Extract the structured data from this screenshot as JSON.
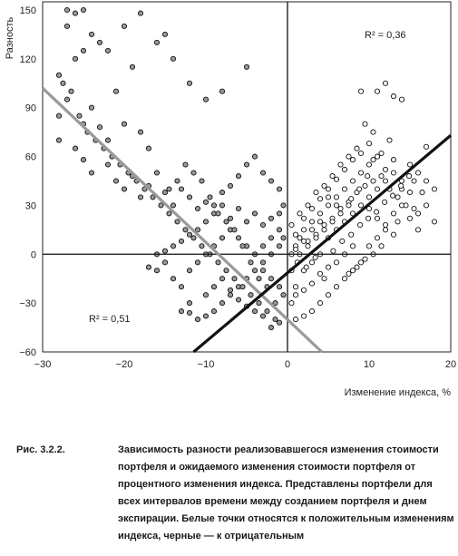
{
  "chart_data": {
    "type": "scatter",
    "ylabel": "Разность",
    "xlabel": "Изменение индекса, %",
    "xlim": [
      -30,
      20
    ],
    "ylim": [
      -60,
      155
    ],
    "xticks": [
      "−30",
      "−20",
      "−10",
      "0",
      "10",
      "20"
    ],
    "xtick_values": [
      -30,
      -20,
      -10,
      0,
      10,
      20
    ],
    "yticks": [
      "150",
      "120",
      "90",
      "60",
      "30",
      "0",
      "−30",
      "−60"
    ],
    "ytick_values": [
      150,
      120,
      90,
      60,
      30,
      0,
      -30,
      -60
    ],
    "r2_positive": "R² = 0,36",
    "r2_negative": "R² = 0,51",
    "series": [
      {
        "name": "Белые точки",
        "fill": "#ffffff",
        "points": [
          [
            1,
            5
          ],
          [
            1.5,
            10
          ],
          [
            2,
            15
          ],
          [
            2.5,
            8
          ],
          [
            3,
            20
          ],
          [
            3.5,
            12
          ],
          [
            4,
            25
          ],
          [
            4.5,
            18
          ],
          [
            5,
            30
          ],
          [
            5.5,
            22
          ],
          [
            6,
            35
          ],
          [
            6.5,
            28
          ],
          [
            7,
            40
          ],
          [
            7.5,
            32
          ],
          [
            8,
            45
          ],
          [
            8.5,
            38
          ],
          [
            9,
            50
          ],
          [
            9.5,
            42
          ],
          [
            10,
            55
          ],
          [
            10.5,
            45
          ],
          [
            11,
            60
          ],
          [
            11.5,
            48
          ],
          [
            12,
            52
          ],
          [
            12.5,
            40
          ],
          [
            13,
            58
          ],
          [
            13.5,
            35
          ],
          [
            14,
            45
          ],
          [
            14.5,
            30
          ],
          [
            15,
            38
          ],
          [
            16,
            25
          ],
          [
            17,
            66
          ],
          [
            18,
            20
          ],
          [
            15.5,
            28
          ],
          [
            13.5,
            20
          ],
          [
            12,
            15
          ],
          [
            11,
            10
          ],
          [
            10,
            5
          ],
          [
            9,
            -5
          ],
          [
            8,
            -10
          ],
          [
            7,
            -15
          ],
          [
            6,
            -20
          ],
          [
            5,
            -25
          ],
          [
            4,
            -30
          ],
          [
            3,
            -35
          ],
          [
            2,
            -38
          ],
          [
            1,
            -40
          ],
          [
            0.5,
            -30
          ],
          [
            1,
            -20
          ],
          [
            2,
            -10
          ],
          [
            3,
            -5
          ],
          [
            4,
            0
          ],
          [
            5,
            10
          ],
          [
            6,
            15
          ],
          [
            7,
            20
          ],
          [
            8,
            25
          ],
          [
            9,
            30
          ],
          [
            10,
            35
          ],
          [
            11,
            40
          ],
          [
            12,
            45
          ],
          [
            13,
            50
          ],
          [
            9,
            100
          ],
          [
            11,
            100
          ],
          [
            12,
            105
          ],
          [
            13,
            97
          ],
          [
            14,
            95
          ],
          [
            10,
            68
          ],
          [
            10.5,
            75
          ],
          [
            9.5,
            80
          ],
          [
            8.5,
            65
          ],
          [
            7.5,
            60
          ],
          [
            6.5,
            55
          ],
          [
            5.5,
            48
          ],
          [
            4.5,
            42
          ],
          [
            3.5,
            38
          ],
          [
            2.5,
            30
          ],
          [
            1.5,
            25
          ],
          [
            0.5,
            18
          ],
          [
            1,
            12
          ],
          [
            2,
            22
          ],
          [
            3,
            28
          ],
          [
            4,
            34
          ],
          [
            5,
            40
          ],
          [
            6,
            46
          ],
          [
            7,
            52
          ],
          [
            8,
            58
          ],
          [
            9,
            62
          ],
          [
            10,
            28
          ],
          [
            11,
            22
          ],
          [
            12,
            18
          ],
          [
            13,
            25
          ],
          [
            14,
            30
          ],
          [
            15,
            22
          ],
          [
            16,
            15
          ],
          [
            17,
            30
          ],
          [
            8,
            5
          ],
          [
            7,
            0
          ],
          [
            6,
            -5
          ],
          [
            5,
            -8
          ],
          [
            4,
            -12
          ],
          [
            3,
            -18
          ],
          [
            2,
            -22
          ],
          [
            1,
            -25
          ],
          [
            0.5,
            -10
          ],
          [
            1.5,
            0
          ],
          [
            2.5,
            5
          ],
          [
            3.5,
            10
          ],
          [
            4.5,
            15
          ],
          [
            5.5,
            20
          ],
          [
            6.5,
            25
          ],
          [
            7.5,
            30
          ],
          [
            14,
            40
          ],
          [
            15.5,
            45
          ],
          [
            16.5,
            38
          ],
          [
            13,
            12
          ],
          [
            11.5,
            5
          ],
          [
            10.5,
            0
          ],
          [
            9.5,
            -3
          ],
          [
            8.5,
            -8
          ],
          [
            7.5,
            -12
          ],
          [
            6,
            30
          ],
          [
            5,
            35
          ],
          [
            4,
            20
          ],
          [
            3,
            15
          ],
          [
            2,
            8
          ],
          [
            1,
            3
          ],
          [
            0.5,
            0
          ],
          [
            1.2,
            -5
          ],
          [
            2.3,
            -8
          ],
          [
            3.4,
            -2
          ],
          [
            4.5,
            -15
          ],
          [
            5.6,
            2
          ],
          [
            6.7,
            8
          ],
          [
            7.8,
            12
          ],
          [
            8.9,
            18
          ],
          [
            9.9,
            22
          ],
          [
            10.9,
            26
          ],
          [
            11.9,
            32
          ],
          [
            12.9,
            36
          ],
          [
            13.9,
            42
          ],
          [
            14.9,
            48
          ],
          [
            15,
            55
          ],
          [
            16,
            50
          ],
          [
            17,
            45
          ],
          [
            18,
            40
          ],
          [
            12.5,
            70
          ],
          [
            11.5,
            62
          ],
          [
            10.5,
            58
          ],
          [
            9.8,
            48
          ],
          [
            8.8,
            40
          ],
          [
            7.8,
            34
          ]
        ]
      },
      {
        "name": "Черные точки",
        "fill": "#9a9a9a",
        "points": [
          [
            -27,
            150
          ],
          [
            -26,
            148
          ],
          [
            -25,
            150
          ],
          [
            -27,
            140
          ],
          [
            -24,
            135
          ],
          [
            -25,
            125
          ],
          [
            -26,
            120
          ],
          [
            -28,
            110
          ],
          [
            -23,
            130
          ],
          [
            -22,
            125
          ],
          [
            -20,
            140
          ],
          [
            -18,
            148
          ],
          [
            -16,
            130
          ],
          [
            -15,
            135
          ],
          [
            -14,
            120
          ],
          [
            -12,
            105
          ],
          [
            -10,
            95
          ],
          [
            -8,
            100
          ],
          [
            -5,
            115
          ],
          [
            -19,
            115
          ],
          [
            -21,
            100
          ],
          [
            -24,
            90
          ],
          [
            -27,
            95
          ],
          [
            -28,
            85
          ],
          [
            -25,
            80
          ],
          [
            -23,
            78
          ],
          [
            -22,
            70
          ],
          [
            -20,
            80
          ],
          [
            -18,
            75
          ],
          [
            -17,
            65
          ],
          [
            -28,
            70
          ],
          [
            -26,
            65
          ],
          [
            -25,
            58
          ],
          [
            -24,
            50
          ],
          [
            -22,
            55
          ],
          [
            -21,
            45
          ],
          [
            -20,
            40
          ],
          [
            -19,
            48
          ],
          [
            -18,
            35
          ],
          [
            -17,
            42
          ],
          [
            -16,
            50
          ],
          [
            -15,
            38
          ],
          [
            -14,
            30
          ],
          [
            -13,
            40
          ],
          [
            -12,
            35
          ],
          [
            -11,
            28
          ],
          [
            -10,
            32
          ],
          [
            -9,
            25
          ],
          [
            -8,
            30
          ],
          [
            -7,
            22
          ],
          [
            -6,
            28
          ],
          [
            -5,
            20
          ],
          [
            -4,
            25
          ],
          [
            -3,
            18
          ],
          [
            -2,
            22
          ],
          [
            -1,
            15
          ],
          [
            -0.5,
            10
          ],
          [
            -1,
            5
          ],
          [
            -2,
            0
          ],
          [
            -3,
            -5
          ],
          [
            -4,
            -10
          ],
          [
            -5,
            -15
          ],
          [
            -6,
            -20
          ],
          [
            -7,
            -25
          ],
          [
            -8,
            -30
          ],
          [
            -9,
            -35
          ],
          [
            -10,
            -38
          ],
          [
            -11,
            -40
          ],
          [
            -12,
            -36
          ],
          [
            -1.5,
            -40
          ],
          [
            -2.5,
            -35
          ],
          [
            -3.5,
            -30
          ],
          [
            -4.5,
            -25
          ],
          [
            -5.5,
            -20
          ],
          [
            -6.5,
            -15
          ],
          [
            -7.5,
            -10
          ],
          [
            -8.5,
            -5
          ],
          [
            -9.5,
            0
          ],
          [
            -10.5,
            5
          ],
          [
            -11.5,
            10
          ],
          [
            -12.5,
            15
          ],
          [
            -13.5,
            20
          ],
          [
            -14.5,
            25
          ],
          [
            -15.5,
            30
          ],
          [
            -16.5,
            35
          ],
          [
            -17.5,
            40
          ],
          [
            -18.5,
            45
          ],
          [
            -19.5,
            50
          ],
          [
            -20.5,
            55
          ],
          [
            -21.5,
            60
          ],
          [
            -22.5,
            65
          ],
          [
            -23.5,
            70
          ],
          [
            -24.5,
            75
          ],
          [
            -25.5,
            85
          ],
          [
            -26.5,
            100
          ],
          [
            -27.5,
            105
          ],
          [
            -15,
            -5
          ],
          [
            -16,
            -10
          ],
          [
            -17,
            -8
          ],
          [
            -14,
            -15
          ],
          [
            -13,
            -20
          ],
          [
            -12,
            -10
          ],
          [
            -11,
            -5
          ],
          [
            -10,
            0
          ],
          [
            -9,
            5
          ],
          [
            -8,
            10
          ],
          [
            -7,
            15
          ],
          [
            -6,
            10
          ],
          [
            -5,
            5
          ],
          [
            -4,
            0
          ],
          [
            -3,
            -10
          ],
          [
            -2,
            -15
          ],
          [
            -1,
            -20
          ],
          [
            -0.5,
            -25
          ],
          [
            -1.5,
            -30
          ],
          [
            -2.5,
            -20
          ],
          [
            -3.5,
            -15
          ],
          [
            -4.5,
            -5
          ],
          [
            -5.5,
            5
          ],
          [
            -6.5,
            15
          ],
          [
            -7.5,
            20
          ],
          [
            -8.5,
            25
          ],
          [
            -9.5,
            35
          ],
          [
            -10.5,
            45
          ],
          [
            -11.5,
            50
          ],
          [
            -12.5,
            55
          ],
          [
            -13.5,
            45
          ],
          [
            -14.5,
            40
          ],
          [
            -4,
            60
          ],
          [
            -5,
            55
          ],
          [
            -3,
            50
          ],
          [
            -2,
            45
          ],
          [
            -1,
            40
          ],
          [
            -6,
            48
          ],
          [
            -7,
            42
          ],
          [
            -8,
            38
          ],
          [
            -9,
            30
          ],
          [
            -10,
            20
          ],
          [
            -11,
            15
          ],
          [
            -12,
            12
          ],
          [
            -13,
            8
          ],
          [
            -14,
            5
          ],
          [
            -15,
            2
          ],
          [
            -16,
            0
          ],
          [
            -12,
            -30
          ],
          [
            -13,
            -35
          ],
          [
            -10,
            -25
          ],
          [
            -9,
            -20
          ],
          [
            -8,
            -15
          ],
          [
            -2,
            -45
          ],
          [
            -1,
            -42
          ],
          [
            -3,
            -38
          ],
          [
            -4,
            -35
          ],
          [
            -5,
            -32
          ],
          [
            -6,
            -28
          ],
          [
            -7,
            -22
          ],
          [
            -2,
            10
          ],
          [
            -3,
            5
          ],
          [
            -1,
            25
          ],
          [
            -0.5,
            30
          ]
        ]
      }
    ],
    "fit_lines": [
      {
        "name": "R² = 0,51",
        "color": "#9a9a9a",
        "x": [
          -30,
          4.2
        ],
        "y": [
          102,
          -60
        ]
      },
      {
        "name": "R² = 0,36",
        "color": "#111111",
        "x": [
          -11.5,
          20
        ],
        "y": [
          -60,
          73
        ]
      }
    ]
  },
  "caption": {
    "label": "Рис. 3.2.2.",
    "text": "Зависимость разности реализовавшегося изменения стоимости портфеля и ожидаемого изменения стоимости портфеля от процентного изменения индекса. Представлены портфели для всех интервалов времени между созданием портфеля и днем экспирации. Белые точки относятся к положительным изменениям индекса, черные — к отрицательным"
  }
}
